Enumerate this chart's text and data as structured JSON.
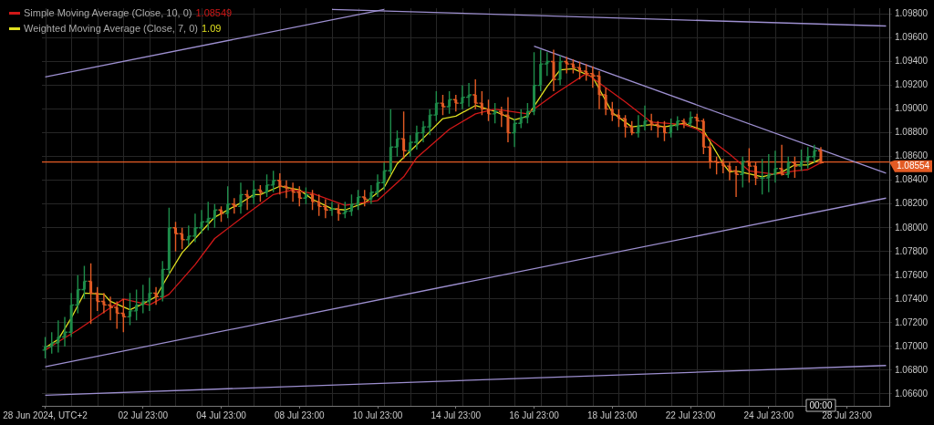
{
  "chart_data": {
    "type": "candlestick",
    "categories": [
      "28 Jun 2024, UTC+2",
      null,
      null,
      null,
      null,
      null,
      null,
      null,
      null,
      null,
      null,
      null,
      null,
      null,
      null,
      "02 Jul 23:00",
      null,
      null,
      null,
      null,
      null,
      null,
      null,
      null,
      null,
      null,
      null,
      "04 Jul 23:00",
      null,
      null,
      null,
      null,
      null,
      null,
      null,
      null,
      null,
      null,
      null,
      "08 Jul 23:00",
      null,
      null,
      null,
      null,
      null,
      null,
      null,
      null,
      null,
      null,
      null,
      "10 Jul 23:00",
      null,
      null,
      null,
      null,
      null,
      null,
      null,
      null,
      null,
      null,
      null,
      "14 Jul 23:00",
      null,
      null,
      null,
      null,
      null,
      null,
      null,
      null,
      null,
      null,
      null,
      "16 Jul 23:00",
      null,
      null,
      null,
      null,
      null,
      null,
      null,
      null,
      null,
      null,
      null,
      "18 Jul 23:00",
      null,
      null,
      null,
      null,
      null,
      null,
      null,
      null,
      null,
      null,
      null,
      "22 Jul 23:00",
      null,
      null,
      null,
      null,
      null,
      null,
      null,
      null,
      null,
      null,
      null,
      "24 Jul 23:00",
      null,
      null,
      null,
      null,
      null,
      null,
      null,
      null,
      null,
      null,
      null,
      "28 Jul 23:00",
      null,
      null,
      null,
      null,
      null,
      null
    ],
    "ohlc": [
      [
        1.0697,
        1.0708,
        1.069,
        1.07
      ],
      [
        1.07,
        1.0712,
        1.0694,
        1.0703
      ],
      [
        1.0703,
        1.0722,
        1.0695,
        1.0708
      ],
      [
        1.0708,
        1.0725,
        1.07,
        1.0712
      ],
      [
        1.0712,
        1.0745,
        1.0708,
        1.0735
      ],
      [
        1.0735,
        1.076,
        1.0728,
        1.0748
      ],
      [
        1.0748,
        1.0768,
        1.074,
        1.0755
      ],
      [
        1.0755,
        1.077,
        1.0719,
        1.0745
      ],
      [
        1.0745,
        1.075,
        1.073,
        1.0738
      ],
      [
        1.0738,
        1.0745,
        1.0728,
        1.0735
      ],
      [
        1.0735,
        1.0742,
        1.0722,
        1.0733
      ],
      [
        1.0733,
        1.0738,
        1.0715,
        1.0728
      ],
      [
        1.0728,
        1.074,
        1.0712,
        1.0725
      ],
      [
        1.0725,
        1.0745,
        1.0718,
        1.073
      ],
      [
        1.073,
        1.0748,
        1.0722,
        1.0735
      ],
      [
        1.0735,
        1.0752,
        1.0728,
        1.0738
      ],
      [
        1.0738,
        1.0758,
        1.073,
        1.0745
      ],
      [
        1.0745,
        1.075,
        1.0735,
        1.0742
      ],
      [
        1.0742,
        1.0772,
        1.0738,
        1.0765
      ],
      [
        1.0765,
        1.0817,
        1.076,
        1.08
      ],
      [
        1.08,
        1.0805,
        1.078,
        1.0795
      ],
      [
        1.0795,
        1.08,
        1.0782,
        1.079
      ],
      [
        1.079,
        1.0802,
        1.0785,
        1.0793
      ],
      [
        1.0793,
        1.0812,
        1.0788,
        1.08
      ],
      [
        1.08,
        1.0815,
        1.0795,
        1.0805
      ],
      [
        1.0805,
        1.0822,
        1.0798,
        1.0808
      ],
      [
        1.0808,
        1.082,
        1.08,
        1.0815
      ],
      [
        1.0815,
        1.0818,
        1.0805,
        1.0812
      ],
      [
        1.0812,
        1.0835,
        1.0808,
        1.082
      ],
      [
        1.082,
        1.0825,
        1.0812,
        1.0818
      ],
      [
        1.0818,
        1.0838,
        1.0812,
        1.0828
      ],
      [
        1.0828,
        1.0832,
        1.0815,
        1.0826
      ],
      [
        1.0826,
        1.084,
        1.082,
        1.0832
      ],
      [
        1.0832,
        1.0836,
        1.0822,
        1.083
      ],
      [
        1.083,
        1.0845,
        1.0826,
        1.0836
      ],
      [
        1.0836,
        1.0848,
        1.083,
        1.084
      ],
      [
        1.084,
        1.0846,
        1.0828,
        1.0835
      ],
      [
        1.0835,
        1.084,
        1.0825,
        1.0833
      ],
      [
        1.0833,
        1.0838,
        1.0822,
        1.083
      ],
      [
        1.083,
        1.0835,
        1.0818,
        1.0825
      ],
      [
        1.0825,
        1.0834,
        1.082,
        1.0828
      ],
      [
        1.0828,
        1.0832,
        1.0815,
        1.0822
      ],
      [
        1.0822,
        1.0828,
        1.081,
        1.0818
      ],
      [
        1.0818,
        1.0824,
        1.0808,
        1.0815
      ],
      [
        1.0815,
        1.0822,
        1.081,
        1.0816
      ],
      [
        1.0816,
        1.082,
        1.0806,
        1.0812
      ],
      [
        1.0812,
        1.0822,
        1.0808,
        1.0814
      ],
      [
        1.0814,
        1.0828,
        1.081,
        1.082
      ],
      [
        1.082,
        1.0832,
        1.0815,
        1.0826
      ],
      [
        1.0826,
        1.0832,
        1.0818,
        1.0824
      ],
      [
        1.0824,
        1.0836,
        1.082,
        1.083
      ],
      [
        1.083,
        1.0845,
        1.0826,
        1.0838
      ],
      [
        1.0838,
        1.0855,
        1.0832,
        1.0848
      ],
      [
        1.0848,
        1.09,
        1.0845,
        1.0868
      ],
      [
        1.0868,
        1.0882,
        1.086,
        1.0875
      ],
      [
        1.0875,
        1.0898,
        1.0858,
        1.0865
      ],
      [
        1.0865,
        1.0878,
        1.086,
        1.0872
      ],
      [
        1.0872,
        1.0886,
        1.0866,
        1.088
      ],
      [
        1.088,
        1.089,
        1.0872,
        1.0885
      ],
      [
        1.0885,
        1.09,
        1.0878,
        1.0895
      ],
      [
        1.0895,
        1.0915,
        1.089,
        1.0905
      ],
      [
        1.0905,
        1.0912,
        1.0895,
        1.0902
      ],
      [
        1.0902,
        1.0915,
        1.0896,
        1.0908
      ],
      [
        1.0908,
        1.0912,
        1.0898,
        1.0905
      ],
      [
        1.0905,
        1.092,
        1.09,
        1.091
      ],
      [
        1.091,
        1.0922,
        1.0902,
        1.0912
      ],
      [
        1.0912,
        1.0925,
        1.09,
        1.0905
      ],
      [
        1.0905,
        1.0915,
        1.0895,
        1.09
      ],
      [
        1.09,
        1.0908,
        1.089,
        1.0896
      ],
      [
        1.0896,
        1.0905,
        1.0888,
        1.0898
      ],
      [
        1.0898,
        1.0902,
        1.0885,
        1.0895
      ],
      [
        1.0895,
        1.091,
        1.0872,
        1.088
      ],
      [
        1.088,
        1.0892,
        1.0868,
        1.0888
      ],
      [
        1.0888,
        1.09,
        1.0884,
        1.0893
      ],
      [
        1.0893,
        1.0905,
        1.0888,
        1.0898
      ],
      [
        1.0898,
        1.0948,
        1.0895,
        1.092
      ],
      [
        1.092,
        1.095,
        1.0915,
        1.0938
      ],
      [
        1.0938,
        1.0948,
        1.0928,
        1.094
      ],
      [
        1.094,
        1.095,
        1.0915,
        1.0925
      ],
      [
        1.0925,
        1.0945,
        1.092,
        1.094
      ],
      [
        1.094,
        1.0944,
        1.093,
        1.0938
      ],
      [
        1.0938,
        1.0942,
        1.093,
        1.0935
      ],
      [
        1.0935,
        1.094,
        1.0925,
        1.0932
      ],
      [
        1.0932,
        1.0938,
        1.0924,
        1.093
      ],
      [
        1.093,
        1.0936,
        1.0918,
        1.0928
      ],
      [
        1.0928,
        1.0932,
        1.09,
        1.0912
      ],
      [
        1.0912,
        1.0918,
        1.0895,
        1.09
      ],
      [
        1.09,
        1.0906,
        1.089,
        1.0895
      ],
      [
        1.0895,
        1.09,
        1.0885,
        1.0892
      ],
      [
        1.0892,
        1.0895,
        1.0876,
        1.0885
      ],
      [
        1.0885,
        1.089,
        1.0878,
        1.088
      ],
      [
        1.088,
        1.0895,
        1.0876,
        1.0886
      ],
      [
        1.0886,
        1.0903,
        1.0882,
        1.089
      ],
      [
        1.089,
        1.0896,
        1.0882,
        1.0887
      ],
      [
        1.0887,
        1.089,
        1.0876,
        1.0885
      ],
      [
        1.0885,
        1.089,
        1.0873,
        1.088
      ],
      [
        1.088,
        1.0892,
        1.0876,
        1.0886
      ],
      [
        1.0886,
        1.0894,
        1.0882,
        1.089
      ],
      [
        1.089,
        1.0892,
        1.0884,
        1.0888
      ],
      [
        1.0888,
        1.0898,
        1.0885,
        1.0893
      ],
      [
        1.0893,
        1.0896,
        1.0884,
        1.089
      ],
      [
        1.089,
        1.0892,
        1.0862,
        1.0868
      ],
      [
        1.0868,
        1.0872,
        1.085,
        1.0856
      ],
      [
        1.0856,
        1.086,
        1.0845,
        1.0855
      ],
      [
        1.0855,
        1.0858,
        1.0846,
        1.0852
      ],
      [
        1.0852,
        1.0855,
        1.084,
        1.0848
      ],
      [
        1.0848,
        1.0852,
        1.0826,
        1.0845
      ],
      [
        1.0845,
        1.086,
        1.0834,
        1.0856
      ],
      [
        1.0856,
        1.0867,
        1.0838,
        1.0852
      ],
      [
        1.0852,
        1.0856,
        1.0836,
        1.0842
      ],
      [
        1.0842,
        1.0858,
        1.0828,
        1.0842
      ],
      [
        1.0842,
        1.0862,
        1.083,
        1.0845
      ],
      [
        1.0845,
        1.0865,
        1.0838,
        1.085
      ],
      [
        1.085,
        1.087,
        1.0844,
        1.0845
      ],
      [
        1.0845,
        1.086,
        1.0842,
        1.0855
      ],
      [
        1.0855,
        1.086,
        1.0842,
        1.0852
      ],
      [
        1.0852,
        1.0866,
        1.0848,
        1.0856
      ],
      [
        1.0856,
        1.0868,
        1.085,
        1.086
      ],
      [
        1.086,
        1.087,
        1.0855,
        1.0865
      ],
      [
        1.0865,
        1.0868,
        1.0854,
        1.0855
      ],
      null,
      null,
      null,
      null,
      null,
      null,
      null,
      null,
      null,
      null
    ],
    "colors": [
      "#1e8c4a",
      "#1e8c4a",
      "#1e8c4a",
      "#1e8c4a",
      "#1e8c4a",
      "#1e8c4a",
      "#1e8c4a",
      "#e35b24",
      "#e35b24",
      "#e35b24",
      "#e35b24",
      "#e35b24",
      "#e35b24",
      "#1e8c4a",
      "#1e8c4a",
      "#1e8c4a",
      "#1e8c4a",
      "#e35b24",
      "#1e8c4a",
      "#1e8c4a",
      "#e35b24",
      "#e35b24",
      "#1e8c4a",
      "#1e8c4a",
      "#1e8c4a",
      "#1e8c4a",
      "#1e8c4a",
      "#e35b24",
      "#1e8c4a",
      "#e35b24",
      "#1e8c4a",
      "#e35b24",
      "#1e8c4a",
      "#e35b24",
      "#1e8c4a",
      "#1e8c4a",
      "#e35b24",
      "#e35b24",
      "#e35b24",
      "#e35b24",
      "#1e8c4a",
      "#e35b24",
      "#e35b24",
      "#e35b24",
      "#1e8c4a",
      "#e35b24",
      "#1e8c4a",
      "#1e8c4a",
      "#1e8c4a",
      "#e35b24",
      "#1e8c4a",
      "#1e8c4a",
      "#1e8c4a",
      "#1e8c4a",
      "#1e8c4a",
      "#e35b24",
      "#1e8c4a",
      "#1e8c4a",
      "#1e8c4a",
      "#1e8c4a",
      "#1e8c4a",
      "#e35b24",
      "#1e8c4a",
      "#e35b24",
      "#1e8c4a",
      "#1e8c4a",
      "#e35b24",
      "#e35b24",
      "#e35b24",
      "#1e8c4a",
      "#e35b24",
      "#e35b24",
      "#1e8c4a",
      "#1e8c4a",
      "#1e8c4a",
      "#1e8c4a",
      "#1e8c4a",
      "#1e8c4a",
      "#e35b24",
      "#1e8c4a",
      "#e35b24",
      "#e35b24",
      "#e35b24",
      "#e35b24",
      "#e35b24",
      "#e35b24",
      "#e35b24",
      "#e35b24",
      "#e35b24",
      "#e35b24",
      "#e35b24",
      "#1e8c4a",
      "#1e8c4a",
      "#e35b24",
      "#e35b24",
      "#e35b24",
      "#1e8c4a",
      "#1e8c4a",
      "#e35b24",
      "#1e8c4a",
      "#e35b24",
      "#e35b24",
      "#e35b24",
      "#e35b24",
      "#e35b24",
      "#e35b24",
      "#e35b24",
      "#1e8c4a",
      "#e35b24",
      "#e35b24",
      "#1e8c4a",
      "#1e8c4a",
      "#1e8c4a",
      "#e35b24",
      "#1e8c4a",
      "#e35b24",
      "#1e8c4a",
      "#1e8c4a",
      "#1e8c4a",
      "#e35b24",
      null,
      null,
      null,
      null,
      null,
      null,
      null,
      null,
      null,
      null
    ],
    "series": [
      {
        "type": "line",
        "name": "Simple Moving Average (Close, 10, 0)",
        "color": "#d01818",
        "values": [
          1.0697,
          null,
          1.0704,
          null,
          null,
          1.0714,
          null,
          null,
          null,
          1.0729,
          null,
          null,
          1.074,
          null,
          null,
          null,
          1.0735,
          null,
          null,
          1.0744,
          null,
          null,
          null,
          1.0769,
          null,
          null,
          1.0791,
          null,
          null,
          null,
          null,
          1.0812,
          null,
          null,
          null,
          1.0828,
          null,
          null,
          1.0832,
          null,
          null,
          1.0829,
          null,
          null,
          null,
          null,
          1.0819,
          null,
          null,
          null,
          null,
          1.0823,
          null,
          null,
          null,
          1.0843,
          null,
          1.0859,
          null,
          null,
          null,
          null,
          1.0883,
          null,
          null,
          null,
          1.0896,
          null,
          null,
          1.09,
          null,
          null,
          null,
          null,
          1.0896,
          null,
          null,
          null,
          1.0912,
          null,
          null,
          null,
          null,
          1.093,
          null,
          null,
          null,
          null,
          null,
          1.0906,
          null,
          null,
          null,
          1.0889,
          null,
          null,
          null,
          null,
          1.0887,
          null,
          1.0883,
          null,
          null,
          null,
          null,
          1.0862,
          null,
          null,
          1.0848,
          null,
          null,
          null,
          1.0845,
          null,
          null,
          1.0848,
          null,
          1.0849,
          null,
          1.08549,
          null,
          null,
          null,
          null,
          null,
          null,
          null,
          null,
          null,
          null
        ]
      },
      {
        "type": "line",
        "name": "Weighted Moving Average (Close, 7, 0)",
        "color": "#e0e020",
        "values": [
          1.0699,
          null,
          1.0706,
          null,
          1.0724,
          null,
          1.0745,
          null,
          null,
          1.0744,
          1.0738,
          null,
          null,
          1.0731,
          null,
          1.0736,
          null,
          1.0742,
          null,
          1.0761,
          null,
          1.0779,
          null,
          1.0791,
          null,
          null,
          1.0809,
          null,
          null,
          null,
          1.0821,
          null,
          1.0828,
          1.0828,
          null,
          null,
          1.0835,
          null,
          null,
          1.0832,
          null,
          1.0824,
          null,
          null,
          1.0816,
          null,
          1.0815,
          null,
          null,
          1.0821,
          null,
          null,
          1.0834,
          null,
          1.0854,
          null,
          null,
          1.087,
          null,
          1.0881,
          null,
          1.0892,
          null,
          1.0894,
          null,
          null,
          1.0903,
          null,
          null,
          1.0898,
          null,
          null,
          1.0891,
          null,
          1.0894,
          null,
          null,
          1.0919,
          null,
          1.0933,
          null,
          1.0934,
          null,
          null,
          1.0927,
          null,
          null,
          1.0897,
          null,
          null,
          1.0885,
          null,
          null,
          1.0887,
          null,
          1.0885,
          null,
          null,
          1.0888,
          null,
          null,
          1.0882,
          null,
          null,
          1.0854,
          1.0847,
          1.0848,
          null,
          null,
          null,
          1.0843,
          null,
          null,
          1.0847,
          null,
          1.0853,
          null,
          1.0853,
          null,
          1.0858,
          null,
          null,
          null,
          null,
          null,
          null,
          null,
          null,
          null,
          null
        ]
      },
      {
        "type": "line",
        "color": "#9d8fd0",
        "values": [
          1.0927,
          null,
          null,
          null,
          null,
          null,
          null,
          null,
          null,
          null,
          null,
          null,
          null,
          null,
          null,
          null,
          null,
          null,
          null,
          null,
          null,
          null,
          null,
          null,
          null,
          null,
          null,
          null,
          null,
          null,
          null,
          null,
          null,
          null,
          null,
          null,
          null,
          null,
          null,
          null,
          null,
          null,
          null,
          null,
          null,
          null,
          null,
          null,
          null,
          null,
          null,
          null,
          1.0984,
          null,
          null,
          null,
          null,
          null,
          null,
          null,
          null,
          null,
          null,
          null,
          null,
          null,
          null,
          null,
          null,
          null,
          null,
          null,
          null,
          null,
          null,
          null,
          null,
          null,
          null,
          null,
          null,
          null,
          null,
          null,
          null,
          null,
          null,
          null,
          null,
          null,
          null,
          null,
          null,
          null,
          null,
          null,
          null,
          null,
          null,
          null,
          null,
          null,
          null,
          null,
          null,
          null,
          null,
          null,
          null,
          null,
          null,
          null,
          null,
          null,
          null,
          null,
          null,
          null,
          null,
          null,
          null,
          null,
          null,
          null,
          null,
          null,
          null,
          null,
          null,
          null
        ]
      },
      {
        "type": "line",
        "color": "#9d8fd0",
        "values": [
          null,
          null,
          null,
          null,
          null,
          null,
          null,
          null,
          null,
          null,
          null,
          null,
          null,
          null,
          null,
          null,
          null,
          null,
          null,
          null,
          null,
          null,
          null,
          null,
          null,
          null,
          null,
          null,
          null,
          null,
          null,
          null,
          null,
          null,
          null,
          null,
          null,
          null,
          null,
          null,
          null,
          null,
          null,
          null,
          1.0984,
          null,
          null,
          null,
          null,
          null,
          null,
          null,
          null,
          null,
          null,
          null,
          null,
          null,
          null,
          null,
          null,
          null,
          null,
          null,
          null,
          null,
          null,
          null,
          null,
          null,
          null,
          null,
          null,
          null,
          null,
          null,
          null,
          null,
          null,
          null,
          null,
          null,
          null,
          null,
          null,
          null,
          null,
          null,
          null,
          null,
          null,
          null,
          null,
          null,
          null,
          null,
          null,
          null,
          null,
          null,
          null,
          null,
          null,
          null,
          null,
          null,
          null,
          null,
          null,
          null,
          null,
          null,
          null,
          null,
          null,
          null,
          null,
          null,
          null,
          null,
          null,
          null,
          null,
          null,
          null,
          null,
          null,
          null,
          null,
          1.097
        ]
      },
      {
        "type": "line",
        "color": "#9d8fd0",
        "values": [
          null,
          null,
          null,
          null,
          null,
          null,
          null,
          null,
          null,
          null,
          null,
          null,
          null,
          null,
          null,
          null,
          null,
          null,
          null,
          null,
          null,
          null,
          null,
          null,
          null,
          null,
          null,
          null,
          null,
          null,
          null,
          null,
          null,
          null,
          null,
          null,
          null,
          null,
          null,
          null,
          null,
          null,
          null,
          null,
          null,
          null,
          null,
          null,
          null,
          null,
          null,
          null,
          null,
          null,
          null,
          null,
          null,
          null,
          null,
          null,
          null,
          null,
          null,
          null,
          null,
          null,
          null,
          null,
          null,
          null,
          null,
          null,
          null,
          null,
          null,
          1.0953,
          null,
          null,
          null,
          null,
          null,
          null,
          null,
          null,
          null,
          null,
          null,
          null,
          null,
          null,
          null,
          null,
          null,
          null,
          null,
          null,
          null,
          null,
          null,
          null,
          null,
          null,
          null,
          null,
          null,
          null,
          null,
          null,
          null,
          null,
          null,
          null,
          null,
          null,
          null,
          null,
          null,
          null,
          null,
          null,
          null,
          null,
          null,
          null,
          null,
          null,
          null,
          null,
          null,
          1.0846
        ]
      },
      {
        "type": "line",
        "color": "#9d8fd0",
        "values": [
          1.0683,
          null,
          null,
          null,
          null,
          null,
          null,
          null,
          null,
          null,
          null,
          null,
          null,
          null,
          null,
          null,
          null,
          null,
          null,
          null,
          null,
          null,
          null,
          null,
          null,
          null,
          null,
          null,
          null,
          null,
          null,
          null,
          null,
          null,
          null,
          null,
          null,
          null,
          null,
          null,
          null,
          null,
          null,
          null,
          null,
          null,
          null,
          null,
          null,
          null,
          null,
          null,
          null,
          null,
          null,
          null,
          null,
          null,
          null,
          null,
          null,
          null,
          null,
          null,
          null,
          null,
          null,
          null,
          null,
          null,
          null,
          null,
          null,
          null,
          null,
          null,
          null,
          null,
          null,
          null,
          null,
          null,
          null,
          null,
          null,
          null,
          null,
          null,
          null,
          null,
          null,
          null,
          null,
          null,
          null,
          null,
          null,
          null,
          null,
          null,
          null,
          null,
          null,
          null,
          null,
          null,
          null,
          null,
          null,
          null,
          null,
          null,
          null,
          null,
          null,
          null,
          null,
          null,
          null,
          null,
          null,
          null,
          null,
          null,
          null,
          null,
          null,
          null,
          null,
          1.0825
        ]
      },
      {
        "type": "line",
        "color": "#9d8fd0",
        "values": [
          1.0659,
          null,
          null,
          null,
          null,
          null,
          null,
          null,
          null,
          null,
          null,
          null,
          null,
          null,
          null,
          null,
          null,
          null,
          null,
          null,
          null,
          null,
          null,
          null,
          null,
          null,
          null,
          null,
          null,
          null,
          null,
          null,
          null,
          null,
          null,
          null,
          null,
          null,
          null,
          null,
          null,
          null,
          null,
          null,
          null,
          null,
          null,
          null,
          null,
          null,
          null,
          null,
          null,
          null,
          null,
          null,
          null,
          null,
          null,
          null,
          null,
          null,
          null,
          null,
          null,
          null,
          null,
          null,
          null,
          null,
          null,
          null,
          null,
          null,
          null,
          null,
          null,
          null,
          null,
          null,
          null,
          null,
          null,
          null,
          null,
          null,
          null,
          null,
          null,
          null,
          null,
          null,
          null,
          null,
          null,
          null,
          null,
          null,
          null,
          null,
          null,
          null,
          null,
          null,
          null,
          null,
          null,
          null,
          null,
          null,
          null,
          null,
          null,
          null,
          null,
          null,
          null,
          null,
          null,
          null,
          null,
          null,
          null,
          null,
          null,
          null,
          null,
          null,
          null,
          1.0684
        ]
      }
    ],
    "annotations": [
      "1.08549",
      "1.09",
      "00:00"
    ],
    "ref_lines": [
      {
        "axis": "y",
        "value": 1.08554,
        "label": "1.08554",
        "color": "#e35b24"
      }
    ],
    "ylim": [
      1.065,
      1.0985
    ],
    "yticks": [
      {
        "value": 1.066,
        "label": "1.06600"
      },
      {
        "value": 1.068,
        "label": "1.06800"
      },
      {
        "value": 1.07,
        "label": "1.07000"
      },
      {
        "value": 1.072,
        "label": "1.07200"
      },
      {
        "value": 1.074,
        "label": "1.07400"
      },
      {
        "value": 1.076,
        "label": "1.07600"
      },
      {
        "value": 1.078,
        "label": "1.07800"
      },
      {
        "value": 1.08,
        "label": "1.08000"
      },
      {
        "value": 1.082,
        "label": "1.08200"
      },
      {
        "value": 1.084,
        "label": "1.08400"
      },
      {
        "value": 1.086,
        "label": "1.08600"
      },
      {
        "value": 1.088,
        "label": "1.08800"
      },
      {
        "value": 1.09,
        "label": "1.09000"
      },
      {
        "value": 1.092,
        "label": "1.09200"
      },
      {
        "value": 1.094,
        "label": "1.09400"
      },
      {
        "value": 1.096,
        "label": "1.09600"
      },
      {
        "value": 1.098,
        "label": "1.09800"
      }
    ],
    "grid": true,
    "legend": "top left",
    "marker": "none"
  }
}
